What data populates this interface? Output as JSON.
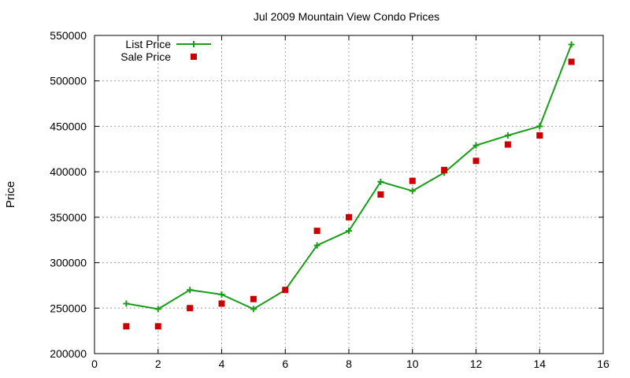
{
  "chart_data": {
    "type": "line",
    "title": "Jul 2009 Mountain View Condo Prices",
    "xlabel": "",
    "ylabel": "Price",
    "xlim": [
      0,
      16
    ],
    "ylim": [
      200000,
      550000
    ],
    "x_ticks": [
      0,
      2,
      4,
      6,
      8,
      10,
      12,
      14,
      16
    ],
    "y_ticks": [
      200000,
      250000,
      300000,
      350000,
      400000,
      450000,
      500000,
      550000
    ],
    "grid": true,
    "legend_position": "top-left",
    "series": [
      {
        "name": "List Price",
        "style": "line-with-plus-markers",
        "color": "#1a9e1a",
        "x": [
          1,
          2,
          3,
          4,
          5,
          6,
          7,
          8,
          9,
          10,
          11,
          12,
          13,
          14,
          15
        ],
        "values": [
          255000,
          249000,
          270000,
          265000,
          249000,
          270000,
          319000,
          335000,
          389000,
          379000,
          399000,
          429000,
          440000,
          450000,
          540000
        ]
      },
      {
        "name": "Sale Price",
        "style": "square-markers",
        "color": "#cc0000",
        "x": [
          1,
          2,
          3,
          4,
          5,
          6,
          7,
          8,
          9,
          10,
          11,
          12,
          13,
          14,
          15
        ],
        "values": [
          230000,
          230000,
          250000,
          255000,
          260000,
          270000,
          335000,
          350000,
          375000,
          390000,
          402000,
          412000,
          430000,
          440000,
          521000
        ]
      }
    ]
  }
}
